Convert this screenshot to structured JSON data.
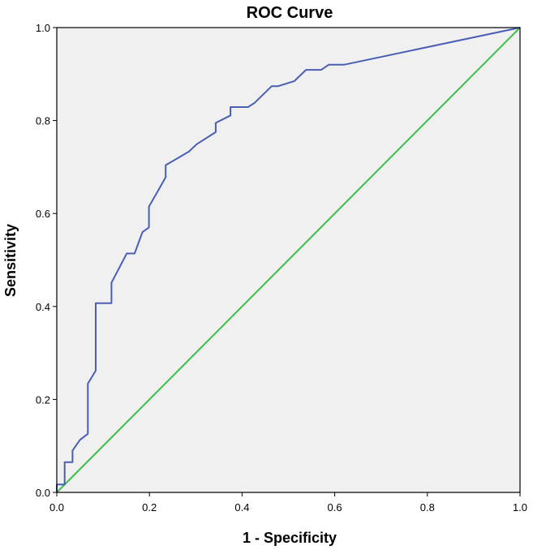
{
  "chart_data": {
    "type": "line",
    "title": "ROC Curve",
    "xlabel": "1 - Specificity",
    "ylabel": "Sensitivity",
    "xlim": [
      0,
      1
    ],
    "ylim": [
      0,
      1
    ],
    "x_ticks": [
      "0.0",
      "0.2",
      "0.4",
      "0.6",
      "0.8",
      "1.0"
    ],
    "y_ticks": [
      "0.0",
      "0.2",
      "0.4",
      "0.6",
      "0.8",
      "1.0"
    ],
    "grid": false,
    "legend": "none",
    "colors": {
      "plot_background": "#f0f0f0",
      "roc_curve": "#4a5fb4",
      "reference_line": "#3bbf4a"
    },
    "series": [
      {
        "x": [
          0.0,
          0.0,
          0.017,
          0.017,
          0.034,
          0.034,
          0.05,
          0.067,
          0.067,
          0.084,
          0.084,
          0.118,
          0.118,
          0.151,
          0.168,
          0.185,
          0.199,
          0.199,
          0.218,
          0.235,
          0.235,
          0.285,
          0.302,
          0.343,
          0.343,
          0.375,
          0.375,
          0.413,
          0.427,
          0.464,
          0.478,
          0.513,
          0.538,
          0.571,
          0.587,
          0.62,
          1.0
        ],
        "y": [
          0.0,
          0.017,
          0.017,
          0.065,
          0.065,
          0.09,
          0.113,
          0.126,
          0.234,
          0.262,
          0.407,
          0.407,
          0.451,
          0.514,
          0.514,
          0.56,
          0.57,
          0.615,
          0.648,
          0.678,
          0.704,
          0.733,
          0.749,
          0.775,
          0.795,
          0.811,
          0.829,
          0.829,
          0.838,
          0.874,
          0.874,
          0.885,
          0.909,
          0.909,
          0.92,
          0.92,
          1.0
        ]
      },
      {
        "x": [
          0.0,
          1.0
        ],
        "y": [
          0.0,
          1.0
        ]
      }
    ]
  }
}
